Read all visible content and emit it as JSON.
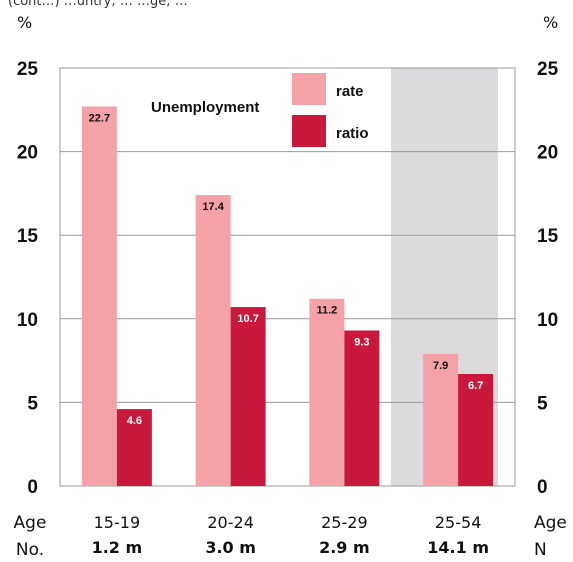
{
  "header_fragment": "(cont…) …untry; … …ge; …",
  "chart_data": {
    "type": "bar",
    "unit_left": "%",
    "unit_right": "%",
    "ylim": [
      0,
      25
    ],
    "yticks": [
      0,
      5,
      10,
      15,
      20,
      25
    ],
    "categories": [
      "15-19",
      "20-24",
      "25-29",
      "25-54"
    ],
    "counts": [
      "1.2 m",
      "3.0 m",
      "2.9 m",
      "14.1 m"
    ],
    "row_label_age": "Age",
    "row_label_no": "No.",
    "row_label_age_right": "Age",
    "row_label_no_right": "N",
    "legend_title": "Unemployment",
    "legend_position": "top-center",
    "grid": true,
    "highlighted_category": "25-54",
    "colors": {
      "rate": "#f4a2a8",
      "ratio": "#c8193c",
      "highlight": "#dcdadd",
      "grid": "#9a9a9a"
    },
    "series": [
      {
        "name": "rate",
        "values": [
          22.7,
          17.4,
          11.2,
          7.9
        ]
      },
      {
        "name": "ratio",
        "values": [
          4.6,
          10.7,
          9.3,
          6.7
        ]
      }
    ],
    "data_labels": {
      "rate": [
        "22.7",
        "17.4",
        "11.2",
        "7.9"
      ],
      "ratio": [
        "4.6",
        "10.7",
        "9.3",
        "6.7"
      ]
    }
  }
}
